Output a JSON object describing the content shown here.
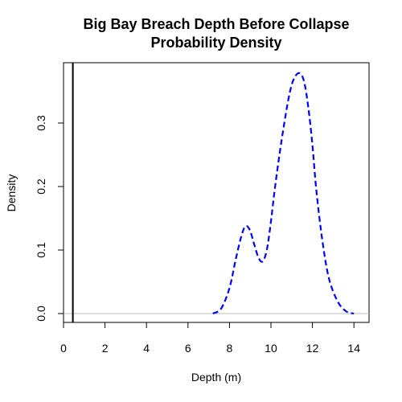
{
  "chart_data": {
    "type": "line",
    "title": "Big Bay Breach Depth Before Collapse",
    "subtitle": "Probability Density",
    "xlabel": "Depth (m)",
    "ylabel": "Density",
    "xlim": [
      0,
      14
    ],
    "ylim": [
      0,
      0.38
    ],
    "xticks": [
      "0",
      "2",
      "4",
      "6",
      "8",
      "10",
      "12",
      "14"
    ],
    "yticks": [
      "0.0",
      "0.1",
      "0.2",
      "0.3"
    ],
    "series": [
      {
        "style": "dashed",
        "color": "#0000ff",
        "x": [
          7.2,
          7.6,
          8.0,
          8.3,
          8.6,
          8.8,
          9.0,
          9.2,
          9.4,
          9.6,
          9.8,
          10.0,
          10.2,
          10.5,
          10.8,
          11.0,
          11.2,
          11.4,
          11.6,
          11.8,
          12.0,
          12.2,
          12.5,
          12.8,
          13.2,
          13.6,
          14.0
        ],
        "y": [
          0.0,
          0.008,
          0.04,
          0.085,
          0.125,
          0.138,
          0.13,
          0.108,
          0.088,
          0.082,
          0.1,
          0.145,
          0.2,
          0.27,
          0.33,
          0.36,
          0.375,
          0.378,
          0.365,
          0.325,
          0.265,
          0.19,
          0.11,
          0.055,
          0.02,
          0.004,
          0.0
        ]
      }
    ],
    "reference_line": {
      "x": 0.45,
      "color": "#000000"
    },
    "zero_line_color": "#bebebe",
    "grid": false,
    "legend": "none"
  }
}
